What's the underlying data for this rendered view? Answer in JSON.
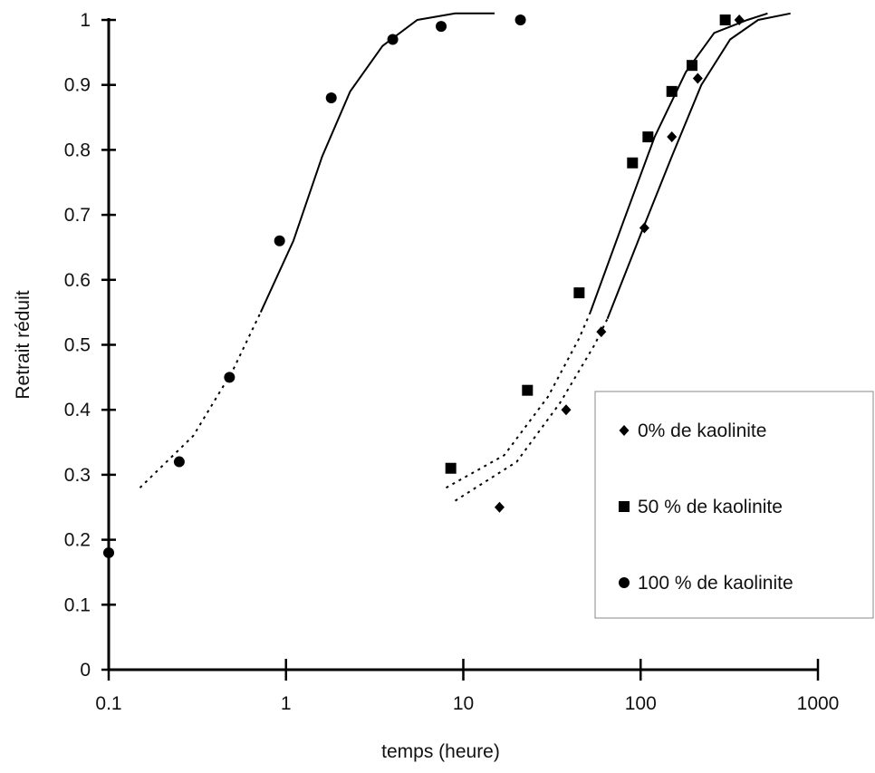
{
  "chart_data": {
    "type": "scatter",
    "xlabel": "temps (heure)",
    "ylabel": "Retrait réduit",
    "xscale": "log",
    "xlim": [
      0.1,
      1000
    ],
    "ylim": [
      0,
      1
    ],
    "x_ticks": [
      0.1,
      1,
      10,
      100,
      1000
    ],
    "x_tick_labels": [
      "0.1",
      "1",
      "10",
      "100",
      "1000"
    ],
    "y_ticks": [
      0,
      0.1,
      0.2,
      0.3,
      0.4,
      0.5,
      0.6,
      0.7,
      0.8,
      0.9,
      1
    ],
    "y_tick_labels": [
      "0",
      "0.1",
      "0.2",
      "0.3",
      "0.4",
      "0.5",
      "0.6",
      "0.7",
      "0.8",
      "0.9",
      "1"
    ],
    "grid": false,
    "legend_position": "right-middle",
    "series": [
      {
        "name": "0% de kaolinite",
        "marker": "diamond",
        "color": "#000000",
        "points": [
          [
            16,
            0.25
          ],
          [
            38,
            0.4
          ],
          [
            60,
            0.52
          ],
          [
            105,
            0.68
          ],
          [
            150,
            0.82
          ],
          [
            210,
            0.91
          ],
          [
            360,
            1.0
          ]
        ],
        "fit_dotted": [
          [
            9,
            0.26
          ],
          [
            20,
            0.32
          ],
          [
            35,
            0.41
          ],
          [
            55,
            0.5
          ],
          [
            65,
            0.54
          ]
        ],
        "fit_solid": [
          [
            65,
            0.54
          ],
          [
            100,
            0.67
          ],
          [
            150,
            0.79
          ],
          [
            220,
            0.9
          ],
          [
            320,
            0.97
          ],
          [
            460,
            1.0
          ],
          [
            700,
            1.01
          ]
        ]
      },
      {
        "name": "50 % de kaolinite",
        "marker": "square",
        "color": "#000000",
        "points": [
          [
            8.5,
            0.31
          ],
          [
            23,
            0.43
          ],
          [
            45,
            0.58
          ],
          [
            90,
            0.78
          ],
          [
            110,
            0.82
          ],
          [
            150,
            0.89
          ],
          [
            195,
            0.93
          ],
          [
            300,
            1.0
          ]
        ],
        "fit_dotted": [
          [
            8,
            0.28
          ],
          [
            17,
            0.33
          ],
          [
            30,
            0.42
          ],
          [
            45,
            0.51
          ],
          [
            52,
            0.55
          ]
        ],
        "fit_solid": [
          [
            52,
            0.55
          ],
          [
            80,
            0.69
          ],
          [
            120,
            0.82
          ],
          [
            180,
            0.92
          ],
          [
            260,
            0.98
          ],
          [
            400,
            1.0
          ],
          [
            520,
            1.01
          ]
        ]
      },
      {
        "name": "100 % de kaolinite",
        "marker": "circle",
        "color": "#000000",
        "points": [
          [
            0.1,
            0.18
          ],
          [
            0.25,
            0.32
          ],
          [
            0.48,
            0.45
          ],
          [
            0.92,
            0.66
          ],
          [
            1.8,
            0.88
          ],
          [
            4,
            0.97
          ],
          [
            7.5,
            0.99
          ],
          [
            21,
            1.0
          ]
        ],
        "fit_dotted": [
          [
            0.15,
            0.28
          ],
          [
            0.3,
            0.36
          ],
          [
            0.5,
            0.46
          ],
          [
            0.72,
            0.55
          ]
        ],
        "fit_solid": [
          [
            0.72,
            0.55
          ],
          [
            1.1,
            0.66
          ],
          [
            1.6,
            0.79
          ],
          [
            2.3,
            0.89
          ],
          [
            3.5,
            0.96
          ],
          [
            5.5,
            1.0
          ],
          [
            9,
            1.01
          ],
          [
            15,
            1.01
          ]
        ]
      }
    ]
  }
}
